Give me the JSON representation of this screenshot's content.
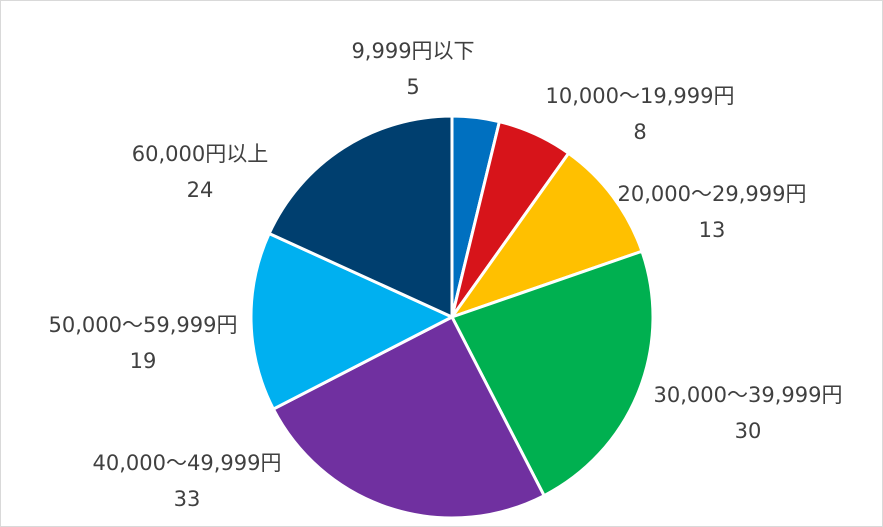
{
  "chart_data": {
    "type": "pie",
    "categories": [
      "9,999円以下",
      "10,000～19,999円",
      "20,000～29,999円",
      "30,000～39,999円",
      "40,000～49,999円",
      "50,000～59,999円",
      "60,000円以上"
    ],
    "values": [
      5,
      8,
      13,
      30,
      33,
      19,
      24
    ],
    "colors": [
      "#0070c0",
      "#d7141a",
      "#ffc000",
      "#00b050",
      "#7030a0",
      "#00b0f0",
      "#003f6f"
    ]
  }
}
